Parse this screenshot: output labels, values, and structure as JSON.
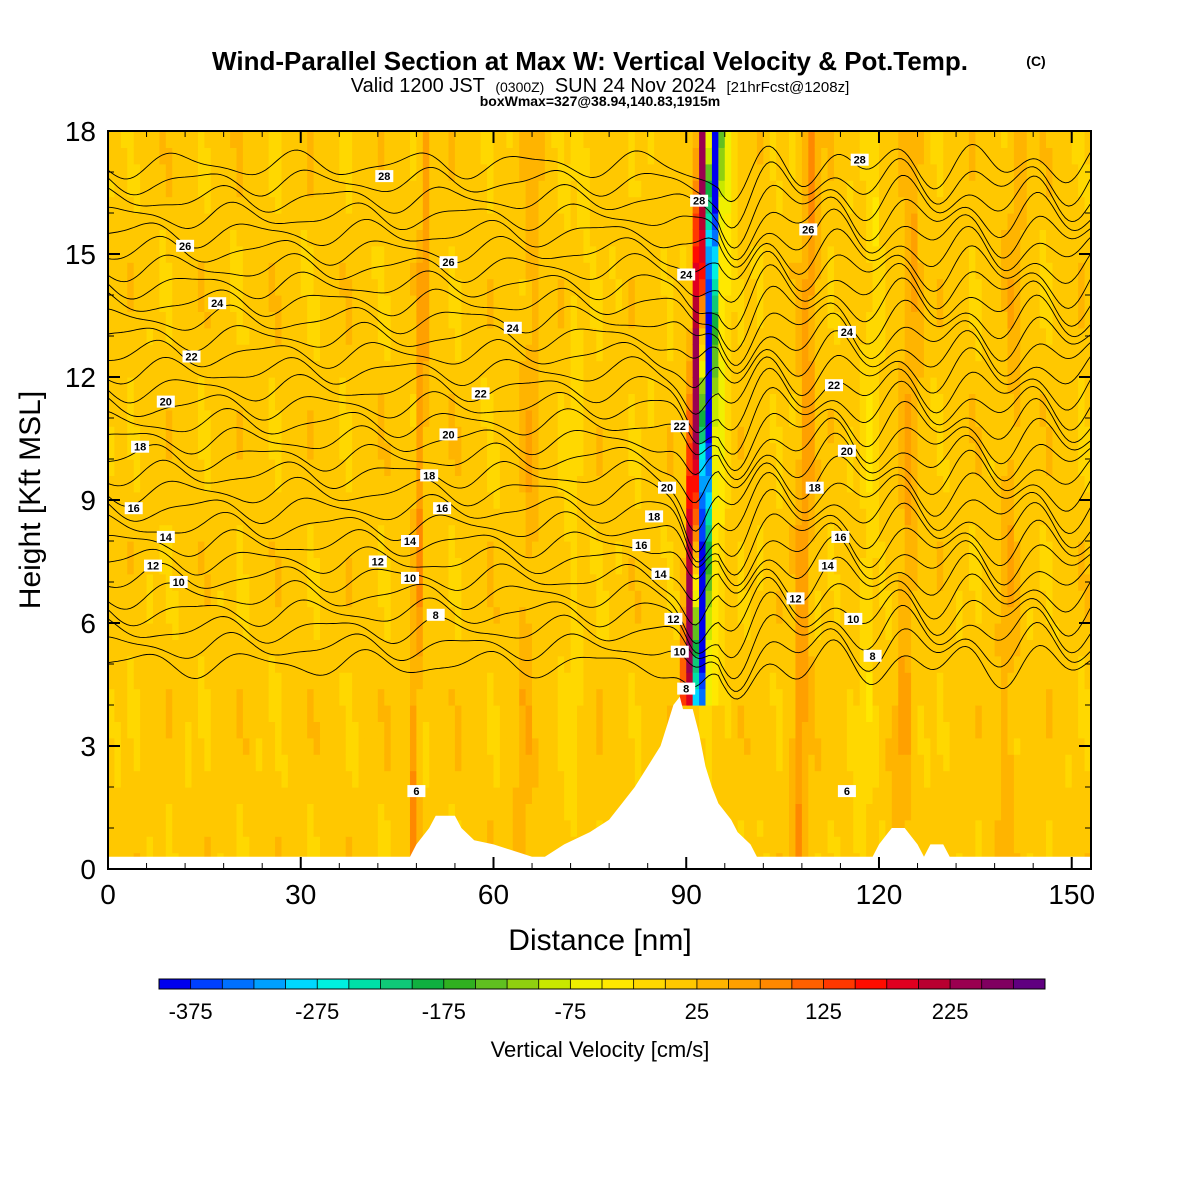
{
  "title": {
    "main": "Wind-Parallel Section at Max W: Vertical Velocity & Pot.Temp.",
    "copyright": "(C)",
    "valid_prefix": "Valid 1200 JST",
    "valid_z": "(0300Z)",
    "valid_date": "SUN 24 Nov 2024",
    "forecast": "[21hrFcst@1208z]",
    "box": "boxWmax=327@38.94,140.83,1915m"
  },
  "chart_data": {
    "type": "heatmap",
    "xlabel": "Distance [nm]",
    "ylabel": "Height [Kft MSL]",
    "xlim": [
      0,
      153
    ],
    "ylim": [
      0,
      18
    ],
    "x_ticks": [
      0,
      30,
      60,
      90,
      120,
      150
    ],
    "y_ticks": [
      0,
      3,
      6,
      9,
      12,
      15,
      18
    ],
    "colorbar": {
      "label": "Vertical Velocity [cm/s]",
      "tick_labels": [
        "-375",
        "-275",
        "-175",
        "-75",
        "25",
        "125",
        "225"
      ],
      "tick_values": [
        -375,
        -275,
        -175,
        -75,
        25,
        125,
        225
      ],
      "levels": [
        -400,
        -375,
        -350,
        -325,
        -300,
        -275,
        -250,
        -225,
        -200,
        -175,
        -150,
        -125,
        -100,
        -75,
        -50,
        -25,
        0,
        25,
        50,
        75,
        100,
        125,
        150,
        175,
        200,
        225,
        250,
        275
      ],
      "colors": [
        "#0000ee",
        "#0040ff",
        "#0070ff",
        "#00a0ff",
        "#00d8ff",
        "#00f0e0",
        "#00e0a8",
        "#10c878",
        "#10b040",
        "#30b020",
        "#60c020",
        "#90d010",
        "#c8e800",
        "#f0f000",
        "#ffe800",
        "#ffd800",
        "#ffc800",
        "#ffb400",
        "#ffa000",
        "#ff8800",
        "#ff6000",
        "#ff3800",
        "#ff0c00",
        "#e00020",
        "#b80030",
        "#9a0050",
        "#800060",
        "#600080"
      ]
    },
    "wind_peak": {
      "x": 91,
      "max_value": 327
    },
    "terrain": [
      [
        0,
        0.3
      ],
      [
        47,
        0.3
      ],
      [
        48,
        0.6
      ],
      [
        50,
        1.0
      ],
      [
        51,
        1.3
      ],
      [
        54,
        1.3
      ],
      [
        55,
        1.0
      ],
      [
        57,
        0.7
      ],
      [
        60,
        0.6
      ],
      [
        62,
        0.5
      ],
      [
        66,
        0.3
      ],
      [
        68,
        0.3
      ],
      [
        71,
        0.6
      ],
      [
        75,
        0.9
      ],
      [
        78,
        1.2
      ],
      [
        80,
        1.6
      ],
      [
        82,
        2.0
      ],
      [
        84,
        2.5
      ],
      [
        86,
        3.0
      ],
      [
        87,
        3.5
      ],
      [
        88,
        4.0
      ],
      [
        89,
        4.2
      ],
      [
        89.5,
        3.9
      ],
      [
        91,
        3.9
      ],
      [
        92,
        3.3
      ],
      [
        93,
        2.5
      ],
      [
        94,
        2.0
      ],
      [
        95,
        1.6
      ],
      [
        97,
        1.2
      ],
      [
        98,
        0.9
      ],
      [
        100,
        0.6
      ],
      [
        101,
        0.3
      ],
      [
        119,
        0.3
      ],
      [
        120,
        0.6
      ],
      [
        122,
        1.0
      ],
      [
        124,
        1.0
      ],
      [
        126,
        0.6
      ],
      [
        127,
        0.3
      ],
      [
        128,
        0.6
      ],
      [
        130,
        0.6
      ],
      [
        131,
        0.3
      ],
      [
        153,
        0.3
      ]
    ],
    "theta_labels": [
      {
        "text": "28",
        "x": 43,
        "y": 16.9
      },
      {
        "text": "26",
        "x": 12,
        "y": 15.2
      },
      {
        "text": "26",
        "x": 53,
        "y": 14.8
      },
      {
        "text": "24",
        "x": 17,
        "y": 13.8
      },
      {
        "text": "24",
        "x": 63,
        "y": 13.2
      },
      {
        "text": "22",
        "x": 13,
        "y": 12.5
      },
      {
        "text": "22",
        "x": 58,
        "y": 11.6
      },
      {
        "text": "20",
        "x": 9,
        "y": 11.4
      },
      {
        "text": "20",
        "x": 53,
        "y": 10.6
      },
      {
        "text": "18",
        "x": 5,
        "y": 10.3
      },
      {
        "text": "18",
        "x": 50,
        "y": 9.6
      },
      {
        "text": "16",
        "x": 4,
        "y": 8.8
      },
      {
        "text": "16",
        "x": 52,
        "y": 8.8
      },
      {
        "text": "14",
        "x": 9,
        "y": 8.1
      },
      {
        "text": "14",
        "x": 47,
        "y": 8.0
      },
      {
        "text": "12",
        "x": 7,
        "y": 7.4
      },
      {
        "text": "12",
        "x": 42,
        "y": 7.5
      },
      {
        "text": "10",
        "x": 11,
        "y": 7.0
      },
      {
        "text": "10",
        "x": 47,
        "y": 7.1
      },
      {
        "text": "8",
        "x": 51,
        "y": 6.2
      },
      {
        "text": "6",
        "x": 48,
        "y": 1.9
      },
      {
        "text": "28",
        "x": 117,
        "y": 17.3
      },
      {
        "text": "28",
        "x": 92,
        "y": 16.3
      },
      {
        "text": "26",
        "x": 109,
        "y": 15.6
      },
      {
        "text": "24",
        "x": 90,
        "y": 14.5
      },
      {
        "text": "24",
        "x": 115,
        "y": 13.1
      },
      {
        "text": "22",
        "x": 113,
        "y": 11.8
      },
      {
        "text": "22",
        "x": 89,
        "y": 10.8
      },
      {
        "text": "20",
        "x": 115,
        "y": 10.2
      },
      {
        "text": "20",
        "x": 87,
        "y": 9.3
      },
      {
        "text": "18",
        "x": 85,
        "y": 8.6
      },
      {
        "text": "18",
        "x": 110,
        "y": 9.3
      },
      {
        "text": "16",
        "x": 83,
        "y": 7.9
      },
      {
        "text": "16",
        "x": 114,
        "y": 8.1
      },
      {
        "text": "14",
        "x": 86,
        "y": 7.2
      },
      {
        "text": "14",
        "x": 112,
        "y": 7.4
      },
      {
        "text": "12",
        "x": 88,
        "y": 6.1
      },
      {
        "text": "12",
        "x": 107,
        "y": 6.6
      },
      {
        "text": "10",
        "x": 89,
        "y": 5.3
      },
      {
        "text": "10",
        "x": 116,
        "y": 6.1
      },
      {
        "text": "8",
        "x": 90,
        "y": 4.4
      },
      {
        "text": "8",
        "x": 119,
        "y": 5.2
      },
      {
        "text": "6",
        "x": 115,
        "y": 1.9
      }
    ]
  }
}
